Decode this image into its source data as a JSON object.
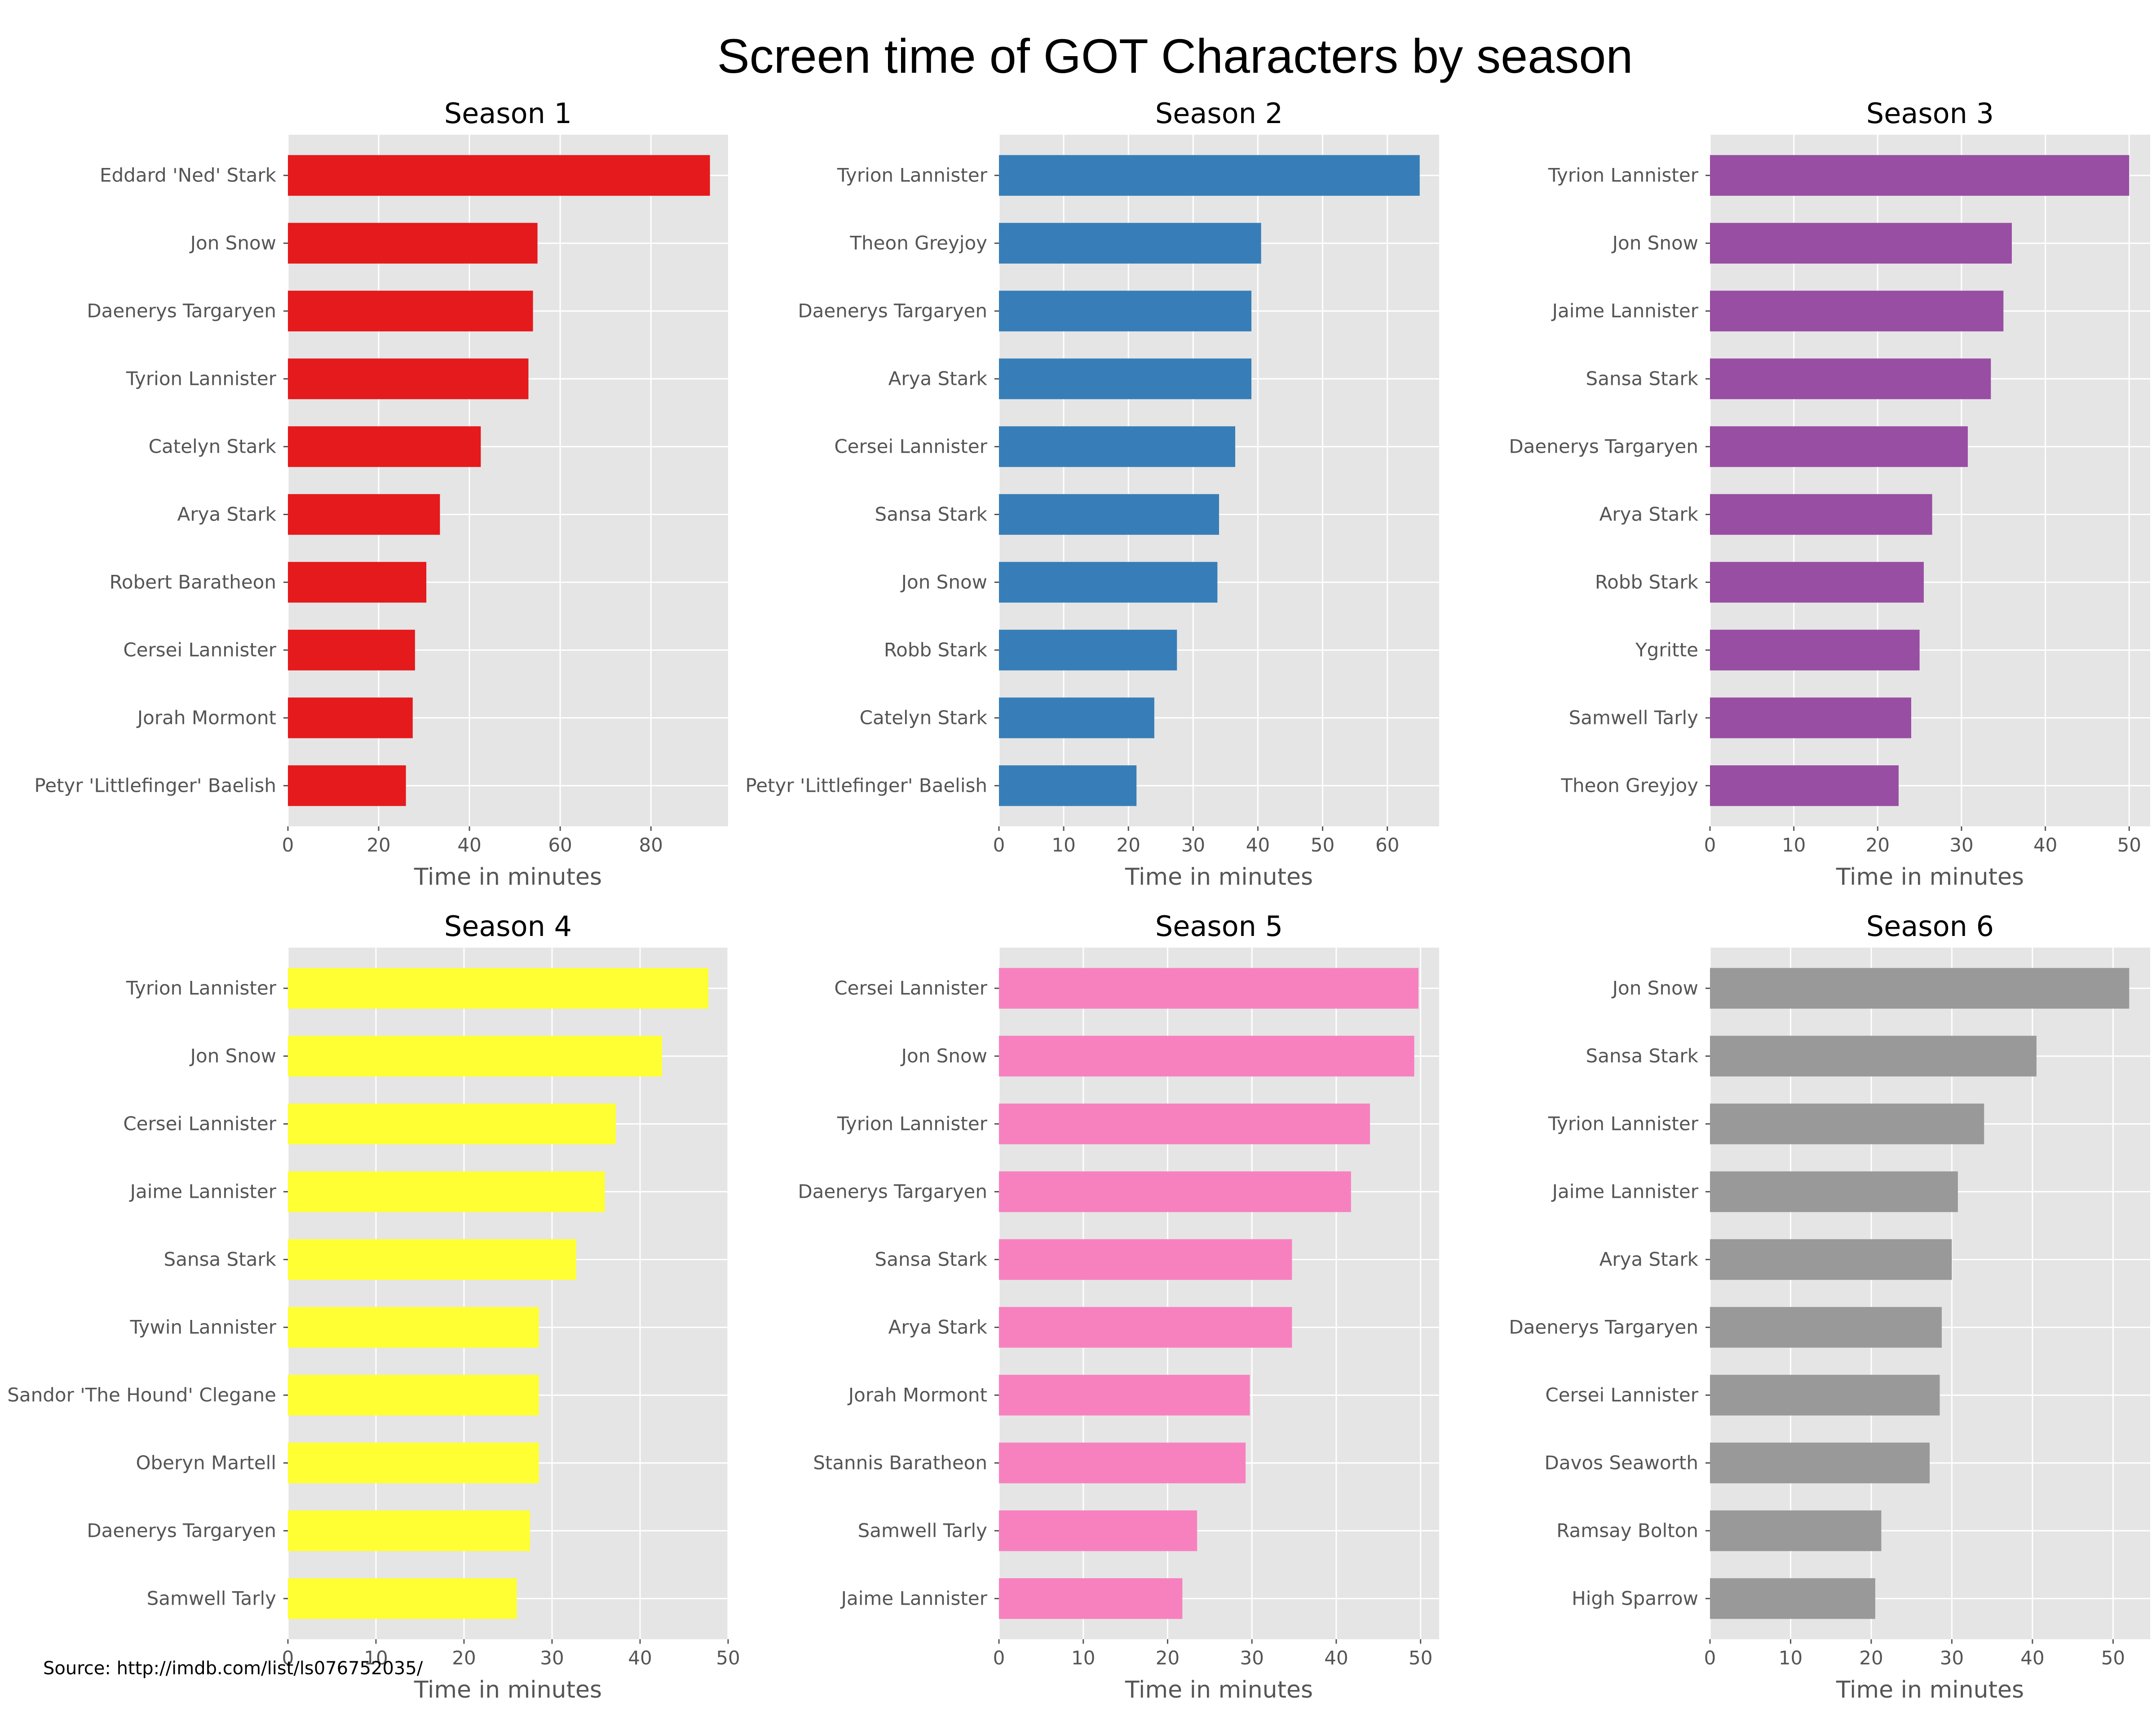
{
  "figure": {
    "title": "Screen time of GOT Characters by season",
    "source": "Source: http://imdb.com/list/ls076752035/"
  },
  "chart_data": [
    {
      "type": "bar",
      "orientation": "horizontal",
      "title": "Season 1",
      "xlabel": "Time in minutes",
      "color": "#e41a1c",
      "xlim": [
        0,
        97
      ],
      "xticks": [
        0,
        20,
        40,
        60,
        80
      ],
      "grid": true,
      "categories": [
        "Eddard 'Ned' Stark",
        "Jon Snow",
        "Daenerys Targaryen",
        "Tyrion Lannister",
        "Catelyn Stark",
        "Arya Stark",
        "Robert Baratheon",
        "Cersei Lannister",
        "Jorah Mormont",
        "Petyr 'Littlefinger' Baelish"
      ],
      "values": [
        93,
        55,
        54,
        53,
        42.5,
        33.5,
        30.5,
        28,
        27.5,
        26
      ]
    },
    {
      "type": "bar",
      "orientation": "horizontal",
      "title": "Season 2",
      "xlabel": "Time in minutes",
      "color": "#377eb8",
      "xlim": [
        0,
        68
      ],
      "xticks": [
        0,
        10,
        20,
        30,
        40,
        50,
        60
      ],
      "grid": true,
      "categories": [
        "Tyrion Lannister",
        "Theon Greyjoy",
        "Daenerys Targaryen",
        "Arya Stark",
        "Cersei Lannister",
        "Sansa Stark",
        "Jon Snow",
        "Robb Stark",
        "Catelyn Stark",
        "Petyr 'Littlefinger' Baelish"
      ],
      "values": [
        65,
        40.5,
        39,
        39,
        36.5,
        34,
        33.75,
        27.5,
        24,
        21.25
      ]
    },
    {
      "type": "bar",
      "orientation": "horizontal",
      "title": "Season 3",
      "xlabel": "Time in minutes",
      "color": "#984ea3",
      "xlim": [
        0,
        52.5
      ],
      "xticks": [
        0,
        10,
        20,
        30,
        40,
        50
      ],
      "grid": true,
      "categories": [
        "Tyrion Lannister",
        "Jon Snow",
        "Jaime Lannister",
        "Sansa Stark",
        "Daenerys Targaryen",
        "Arya Stark",
        "Robb Stark",
        "Ygritte",
        "Samwell Tarly",
        "Theon Greyjoy"
      ],
      "values": [
        50,
        36,
        35,
        33.5,
        30.75,
        26.5,
        25.5,
        25,
        24,
        22.5
      ]
    },
    {
      "type": "bar",
      "orientation": "horizontal",
      "title": "Season 4",
      "xlabel": "Time in minutes",
      "color": "#ffff33",
      "xlim": [
        0,
        50
      ],
      "xticks": [
        0,
        10,
        20,
        30,
        40,
        50
      ],
      "grid": true,
      "categories": [
        "Tyrion Lannister",
        "Jon Snow",
        "Cersei Lannister",
        "Jaime Lannister",
        "Sansa Stark",
        "Tywin Lannister",
        "Sandor 'The Hound' Clegane",
        "Oberyn Martell",
        "Daenerys Targaryen",
        "Samwell Tarly"
      ],
      "values": [
        47.75,
        42.5,
        37.25,
        36,
        32.75,
        28.5,
        28.5,
        28.5,
        27.5,
        26
      ]
    },
    {
      "type": "bar",
      "orientation": "horizontal",
      "title": "Season 5",
      "xlabel": "Time in minutes",
      "color": "#f781bf",
      "xlim": [
        0,
        52.2
      ],
      "xticks": [
        0,
        10,
        20,
        30,
        40,
        50
      ],
      "grid": true,
      "categories": [
        "Cersei Lannister",
        "Jon Snow",
        "Tyrion Lannister",
        "Daenerys Targaryen",
        "Sansa Stark",
        "Arya Stark",
        "Jorah Mormont",
        "Stannis Baratheon",
        "Samwell Tarly",
        "Jaime Lannister"
      ],
      "values": [
        49.75,
        49.25,
        44,
        41.75,
        34.75,
        34.75,
        29.75,
        29.25,
        23.5,
        21.75
      ]
    },
    {
      "type": "bar",
      "orientation": "horizontal",
      "title": "Season 6",
      "xlabel": "Time in minutes",
      "color": "#999999",
      "xlim": [
        0,
        54.6
      ],
      "xticks": [
        0,
        10,
        20,
        30,
        40,
        50
      ],
      "grid": true,
      "categories": [
        "Jon Snow",
        "Sansa Stark",
        "Tyrion Lannister",
        "Jaime Lannister",
        "Arya Stark",
        "Daenerys Targaryen",
        "Cersei Lannister",
        "Davos Seaworth",
        "Ramsay Bolton",
        "High Sparrow"
      ],
      "values": [
        52,
        40.5,
        34,
        30.75,
        30,
        28.75,
        28.5,
        27.25,
        21.25,
        20.5
      ]
    }
  ]
}
